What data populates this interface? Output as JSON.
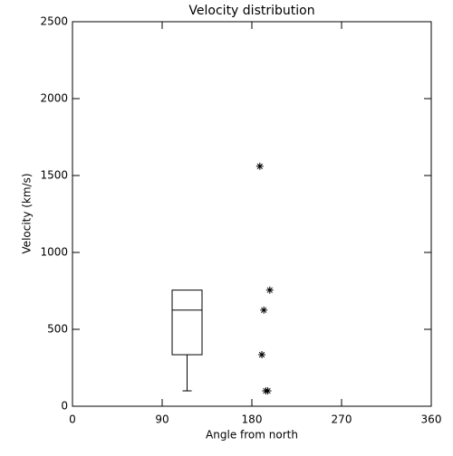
{
  "chart_data": {
    "type": "box",
    "title": "Velocity distribution",
    "x_label": "Angle from north",
    "y_label": "Velocity (km/s)",
    "xlim": [
      0,
      360
    ],
    "xticks": [
      0,
      90,
      180,
      270,
      360
    ],
    "ylim": [
      0,
      2500
    ],
    "yticks": [
      0,
      500,
      1000,
      1500,
      2000,
      2500
    ],
    "color": "#000000",
    "boxes": [
      {
        "x": 115,
        "width": 30,
        "whisker_low": 100,
        "q1": 335,
        "median": 625,
        "q3": 755,
        "whisker_high": 755
      }
    ],
    "points": {
      "x": [
        188,
        198,
        192,
        190,
        194,
        196
      ],
      "y": [
        1560,
        755,
        625,
        335,
        100,
        100
      ]
    }
  }
}
